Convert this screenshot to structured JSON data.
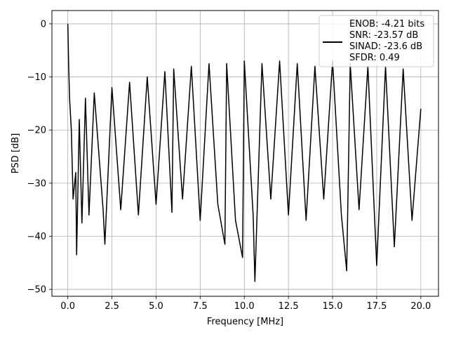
{
  "chart_data": {
    "type": "line",
    "title": "",
    "xlabel": "Frequency [MHz]",
    "ylabel": "PSD [dB]",
    "xlim": [
      -0.9,
      21.0
    ],
    "ylim": [
      -51.3,
      2.5
    ],
    "xticks": [
      0.0,
      2.5,
      5.0,
      7.5,
      10.0,
      12.5,
      15.0,
      17.5,
      20.0
    ],
    "xtick_labels": [
      "0.0",
      "2.5",
      "5.0",
      "7.5",
      "10.0",
      "12.5",
      "15.0",
      "17.5",
      "20.0"
    ],
    "yticks": [
      0,
      -10,
      -20,
      -30,
      -40,
      -50
    ],
    "ytick_labels": [
      "0",
      "−10",
      "−20",
      "−30",
      "−40",
      "−50"
    ],
    "grid": true,
    "legend_position": "top-right",
    "legend_lines": [
      "ENOB: -4.21 bits",
      "SNR: -23.57 dB",
      "SINAD: -23.6 dB",
      "SFDR: 0.49"
    ],
    "line_color": "#000000",
    "series": [
      {
        "x": [
          0.0,
          0.02,
          0.05,
          0.1,
          0.2,
          0.3,
          0.45,
          0.5,
          0.65,
          0.8,
          1.0,
          1.2,
          1.5,
          2.0,
          2.1,
          2.5,
          3.0,
          3.5,
          4.0,
          4.5,
          5.0,
          5.5,
          5.9,
          6.0,
          6.5,
          7.0,
          7.5,
          8.0,
          8.5,
          8.9,
          9.0,
          9.5,
          9.9,
          10.0,
          10.5,
          10.6,
          11.0,
          11.5,
          12.0,
          12.5,
          13.0,
          13.5,
          14.0,
          14.5,
          15.0,
          15.5,
          15.8,
          16.0,
          16.5,
          17.0,
          17.5,
          18.0,
          18.5,
          19.0,
          19.5,
          20.0
        ],
        "y": [
          0.0,
          -3.0,
          -8.0,
          -14.0,
          -20.0,
          -33.0,
          -28.0,
          -43.5,
          -18.0,
          -37.5,
          -14.0,
          -36.0,
          -13.0,
          -35.0,
          -41.5,
          -12.0,
          -35.0,
          -11.0,
          -36.0,
          -10.0,
          -34.0,
          -9.0,
          -35.5,
          -8.5,
          -33.0,
          -8.0,
          -37.0,
          -7.5,
          -34.0,
          -41.5,
          -7.5,
          -37.0,
          -44.0,
          -7.0,
          -36.0,
          -48.5,
          -7.5,
          -33.0,
          -7.0,
          -36.0,
          -7.5,
          -37.0,
          -8.0,
          -33.0,
          -7.0,
          -36.0,
          -46.5,
          -7.5,
          -35.0,
          -8.0,
          -45.5,
          -8.0,
          -42.0,
          -8.5,
          -37.0,
          -16.0
        ]
      }
    ]
  }
}
